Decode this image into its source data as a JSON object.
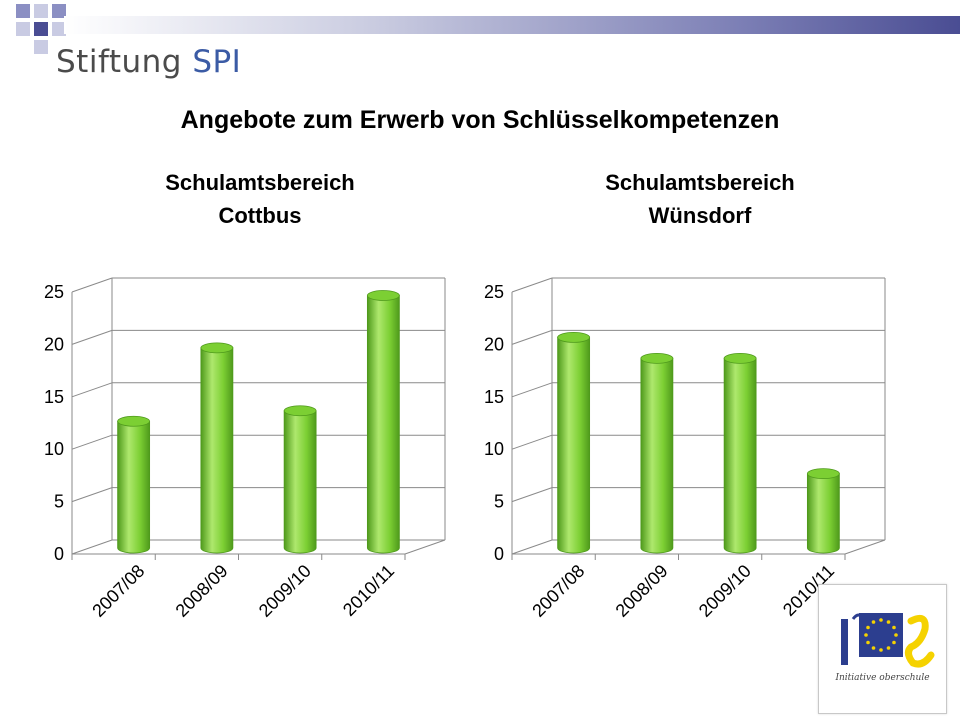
{
  "header": {
    "logo_word1": "Stiftung",
    "logo_word2": "SPI"
  },
  "page_title": "Angebote zum Erwerb von Schlüsselkompetenzen",
  "colors": {
    "bar": "#7ccf33",
    "bar_dark": "#4f9a1c",
    "bar_light": "#aee86d",
    "logo_blue": "#2c3e8f",
    "logo_yellow": "#f5d200",
    "accent_blue": "#3b5ba5"
  },
  "chart_data": [
    {
      "type": "bar",
      "title_line1": "Schulamtsbereich",
      "title_line2": "Cottbus",
      "categories": [
        "2007/08",
        "2008/09",
        "2009/10",
        "2010/11"
      ],
      "values": [
        12,
        19,
        13,
        24
      ],
      "ylim": [
        0,
        25
      ],
      "yticks": [
        0,
        5,
        10,
        15,
        20,
        25
      ],
      "grid": true,
      "style": "3d-cylinder"
    },
    {
      "type": "bar",
      "title_line1": "Schulamtsbereich",
      "title_line2": "Wünsdorf",
      "categories": [
        "2007/08",
        "2008/09",
        "2009/10",
        "2010/11"
      ],
      "values": [
        20,
        18,
        18,
        7
      ],
      "ylim": [
        0,
        25
      ],
      "yticks": [
        0,
        5,
        10,
        15,
        20,
        25
      ],
      "grid": true,
      "style": "3d-cylinder"
    }
  ],
  "logo_ios": {
    "caption": "Initiative oberschule",
    "icon": "ios-eu-stars-logo"
  }
}
